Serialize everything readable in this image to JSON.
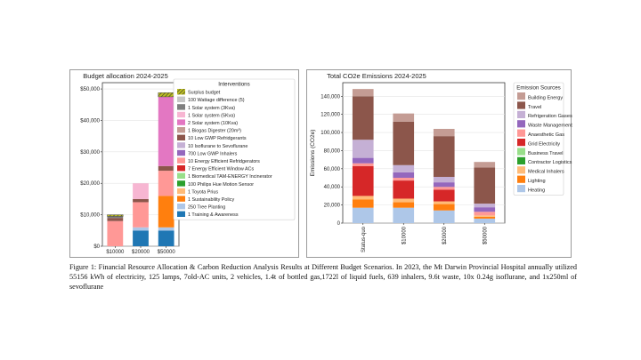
{
  "caption": "Figure 1:  Financial Resource Allocation & Carbon Reduction Analysis Results at Different Budget Scenarios. In 2023, the Mt Darwin Provincial Hospital annually utilized 55156 kWh of electricity, 125 lamps, 7old-AC units, 2 vehicles, 1.4t of bottled gas,1722l of liquid fuels, 639 inhalers, 9.6t waste, 10x 0.24g isoflurane, and 1x250ml of sevoflurane",
  "chart_data": [
    {
      "type": "bar",
      "stacked": true,
      "title": "Budget allocation 2024-2025",
      "xlabel": "",
      "ylabel": "",
      "categories": [
        "$10000",
        "$20000",
        "$50000"
      ],
      "ylim": [
        0,
        52000
      ],
      "yticks": [
        0,
        10000,
        20000,
        30000,
        40000,
        50000
      ],
      "ytick_labels": [
        "$0",
        "$10,000",
        "$20,000",
        "$30,000",
        "$40,000",
        "$50,000"
      ],
      "grid": true,
      "legend_title": "Interventions",
      "legend_position": "right",
      "series": [
        {
          "name": "1 Training & Awareness",
          "color": "#1f77b4",
          "values": [
            0,
            5000,
            5000
          ]
        },
        {
          "name": "250 Tree Planting",
          "color": "#aec7e8",
          "values": [
            0,
            1000,
            1000
          ]
        },
        {
          "name": "1 Sustainability Policy",
          "color": "#ff7f0e",
          "values": [
            0,
            0,
            10000
          ]
        },
        {
          "name": "1 Toyota Prius",
          "color": "#ffbb78",
          "values": [
            0,
            0,
            0
          ]
        },
        {
          "name": "100 Philips Hue Motion Sensor",
          "color": "#2ca02c",
          "values": [
            0,
            0,
            0
          ]
        },
        {
          "name": "1 Biomedical TAM-ENERGY Incinerator",
          "color": "#98df8a",
          "values": [
            0,
            0,
            0
          ]
        },
        {
          "name": "7 Energy Efficient Window ACs",
          "color": "#d62728",
          "values": [
            0,
            0,
            0
          ]
        },
        {
          "name": "10 Energy Efficient Refridgerators",
          "color": "#ff9896",
          "values": [
            8000,
            8000,
            8000
          ]
        },
        {
          "name": "700 Low GWP Inhalers",
          "color": "#9467bd",
          "values": [
            0,
            0,
            0
          ]
        },
        {
          "name": "10 Isoflurane to Sevoflurane",
          "color": "#c5b0d5",
          "values": [
            0,
            0,
            0
          ]
        },
        {
          "name": "10 Low GWP Refridgerants",
          "color": "#8c564b",
          "values": [
            1000,
            1000,
            1500
          ]
        },
        {
          "name": "1 Biogas Digester (20m³)",
          "color": "#c49c94",
          "values": [
            0,
            0,
            0
          ]
        },
        {
          "name": "2 Solar system (10Kva)",
          "color": "#e377c2",
          "values": [
            0,
            0,
            22000
          ]
        },
        {
          "name": "1 Solar system (5Kva)",
          "color": "#f7b6d2",
          "values": [
            0,
            5000,
            0
          ]
        },
        {
          "name": "1 Solar system (3Kva)",
          "color": "#7f7f7f",
          "values": [
            500,
            0,
            0
          ]
        },
        {
          "name": "100 Wattage difference (5)",
          "color": "#c7c7c7",
          "values": [
            0,
            0,
            0
          ]
        },
        {
          "name": "Surplus budget",
          "color": "#bcbd22",
          "values": [
            500,
            0,
            1300
          ],
          "hatch": true
        }
      ]
    },
    {
      "type": "bar",
      "stacked": true,
      "title": "Total CO2e Emissions 2024-2025",
      "xlabel": "",
      "ylabel": "Emissions (CO2e)",
      "categories": [
        "Status-quo",
        "$10000",
        "$20000",
        "$50000"
      ],
      "ylim": [
        0,
        155000
      ],
      "yticks": [
        0,
        20000,
        40000,
        60000,
        80000,
        100000,
        120000,
        140000
      ],
      "ytick_labels": [
        "0",
        "20,000",
        "40,000",
        "60,000",
        "80,000",
        "100,000",
        "120,000",
        "140,000"
      ],
      "grid": true,
      "legend_title": "Emission Sources",
      "legend_position": "right",
      "series": [
        {
          "name": "Heating",
          "color": "#aec7e8",
          "values": [
            17000,
            17000,
            14000,
            5000
          ]
        },
        {
          "name": "Lighting",
          "color": "#ff7f0e",
          "values": [
            9000,
            6000,
            7000,
            2000
          ]
        },
        {
          "name": "Medical Inhalers",
          "color": "#ffbb78",
          "values": [
            4000,
            4000,
            3000,
            1500
          ]
        },
        {
          "name": "Contractor Logistics",
          "color": "#2ca02c",
          "values": [
            0,
            0,
            0,
            0
          ]
        },
        {
          "name": "Business Travel",
          "color": "#98df8a",
          "values": [
            0,
            0,
            0,
            0
          ]
        },
        {
          "name": "Grid Electricity",
          "color": "#d62728",
          "values": [
            33000,
            20000,
            13000,
            0
          ]
        },
        {
          "name": "Anaesthetic Gas",
          "color": "#ff9896",
          "values": [
            3000,
            3000,
            3000,
            4000
          ]
        },
        {
          "name": "Waste Management",
          "color": "#9467bd",
          "values": [
            6000,
            6000,
            5000,
            5000
          ]
        },
        {
          "name": "Refrigeration Gases",
          "color": "#c5b0d5",
          "values": [
            20000,
            8000,
            6000,
            4000
          ]
        },
        {
          "name": "Travel",
          "color": "#8c564b",
          "values": [
            48000,
            48000,
            45000,
            40000
          ]
        },
        {
          "name": "Building Energy",
          "color": "#c49c94",
          "values": [
            8000,
            9000,
            8000,
            6000
          ]
        }
      ]
    }
  ]
}
